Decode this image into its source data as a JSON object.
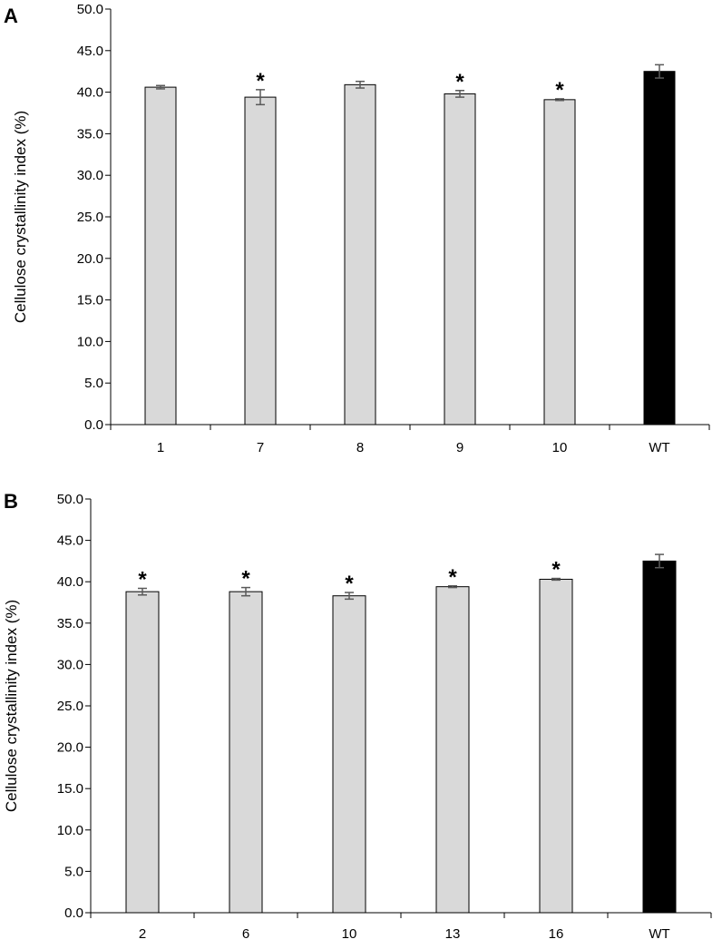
{
  "chart_data": [
    {
      "type": "bar",
      "panel_label": "A",
      "categories": [
        "1",
        "7",
        "8",
        "9",
        "10",
        "WT"
      ],
      "values": [
        40.6,
        39.4,
        40.9,
        39.8,
        39.1,
        42.5
      ],
      "errors": [
        0.2,
        0.9,
        0.4,
        0.4,
        0.1,
        0.8
      ],
      "significance": [
        "",
        "*",
        "",
        "*",
        "*",
        ""
      ],
      "bar_colors": [
        "#d9d9d9",
        "#d9d9d9",
        "#d9d9d9",
        "#d9d9d9",
        "#d9d9d9",
        "#000000"
      ],
      "ylabel": "Cellulose crystallinity index (%)",
      "xlabel": "",
      "ylim": [
        0,
        50
      ],
      "ytick_labels": [
        "0.0",
        "5.0",
        "10.0",
        "15.0",
        "20.0",
        "25.0",
        "30.0",
        "35.0",
        "40.0",
        "45.0",
        "50.0"
      ],
      "grid": false,
      "legend": "none"
    },
    {
      "type": "bar",
      "panel_label": "B",
      "categories": [
        "2",
        "6",
        "10",
        "13",
        "16",
        "WT"
      ],
      "values": [
        38.8,
        38.8,
        38.3,
        39.4,
        40.3,
        42.5
      ],
      "errors": [
        0.4,
        0.5,
        0.4,
        0.1,
        0.1,
        0.8
      ],
      "significance": [
        "*",
        "*",
        "*",
        "*",
        "*",
        ""
      ],
      "bar_colors": [
        "#d9d9d9",
        "#d9d9d9",
        "#d9d9d9",
        "#d9d9d9",
        "#d9d9d9",
        "#000000"
      ],
      "ylabel": "Cellulose crystallinity index (%)",
      "xlabel": "",
      "ylim": [
        0,
        50
      ],
      "ytick_labels": [
        "0.0",
        "5.0",
        "10.0",
        "15.0",
        "20.0",
        "25.0",
        "30.0",
        "35.0",
        "40.0",
        "45.0",
        "50.0"
      ],
      "grid": false,
      "legend": "none"
    }
  ]
}
